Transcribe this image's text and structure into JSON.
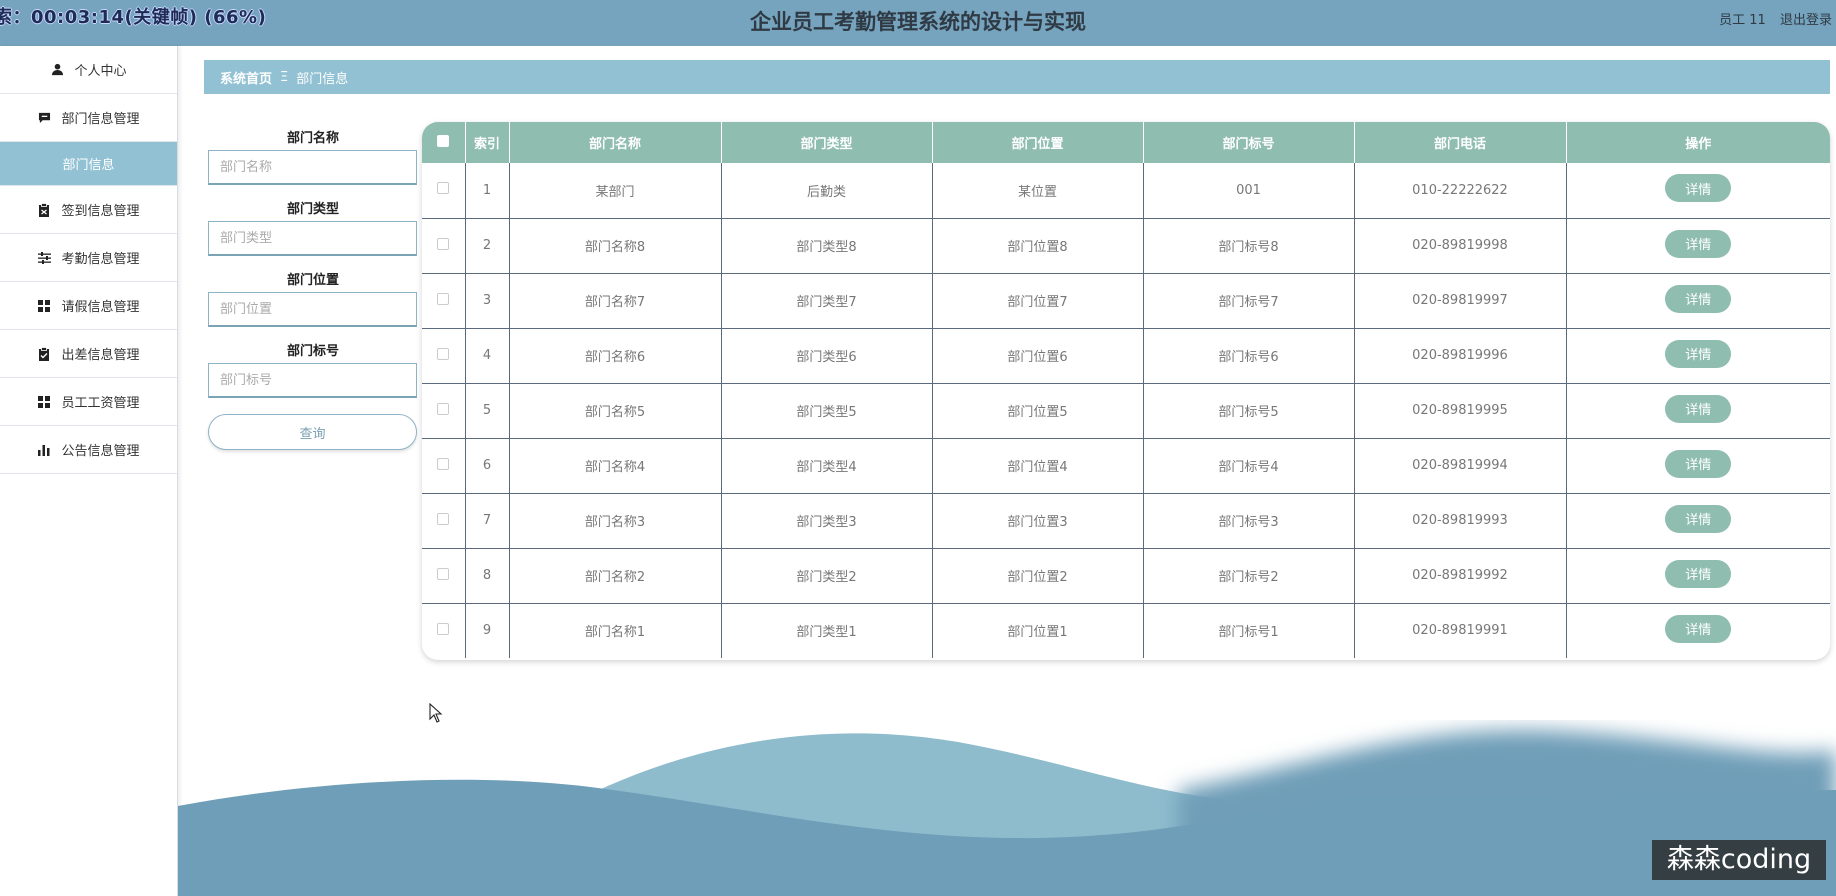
{
  "overlay": {
    "text": "索：00:03:14(关键帧) (66%)"
  },
  "header": {
    "title": "企业员工考勤管理系统的设计与实现",
    "user": "员工 11",
    "logout": "退出登录"
  },
  "sidebar": {
    "items": [
      {
        "label": "个人中心",
        "icon": "user-icon"
      },
      {
        "label": "部门信息管理",
        "icon": "message-icon"
      },
      {
        "label": "部门信息",
        "icon": "",
        "active": true
      },
      {
        "label": "签到信息管理",
        "icon": "clipboard-icon"
      },
      {
        "label": "考勤信息管理",
        "icon": "sliders-icon"
      },
      {
        "label": "请假信息管理",
        "icon": "grid-icon"
      },
      {
        "label": "出差信息管理",
        "icon": "clipboard-check-icon"
      },
      {
        "label": "员工工资管理",
        "icon": "grid-icon"
      },
      {
        "label": "公告信息管理",
        "icon": "bar-chart-icon"
      }
    ]
  },
  "breadcrumb": {
    "home": "系统首页",
    "separator": "Ξ",
    "current": "部门信息"
  },
  "search": {
    "fields": [
      {
        "label": "部门名称",
        "placeholder": "部门名称"
      },
      {
        "label": "部门类型",
        "placeholder": "部门类型"
      },
      {
        "label": "部门位置",
        "placeholder": "部门位置"
      },
      {
        "label": "部门标号",
        "placeholder": "部门标号"
      }
    ],
    "button": "查询"
  },
  "table": {
    "columns": [
      "索引",
      "部门名称",
      "部门类型",
      "部门位置",
      "部门标号",
      "部门电话",
      "操作"
    ],
    "action_label": "详情",
    "rows": [
      [
        "1",
        "某部门",
        "后勤类",
        "某位置",
        "001",
        "010-22222622"
      ],
      [
        "2",
        "部门名称8",
        "部门类型8",
        "部门位置8",
        "部门标号8",
        "020-89819998"
      ],
      [
        "3",
        "部门名称7",
        "部门类型7",
        "部门位置7",
        "部门标号7",
        "020-89819997"
      ],
      [
        "4",
        "部门名称6",
        "部门类型6",
        "部门位置6",
        "部门标号6",
        "020-89819996"
      ],
      [
        "5",
        "部门名称5",
        "部门类型5",
        "部门位置5",
        "部门标号5",
        "020-89819995"
      ],
      [
        "6",
        "部门名称4",
        "部门类型4",
        "部门位置4",
        "部门标号4",
        "020-89819994"
      ],
      [
        "7",
        "部门名称3",
        "部门类型3",
        "部门位置3",
        "部门标号3",
        "020-89819993"
      ],
      [
        "8",
        "部门名称2",
        "部门类型2",
        "部门位置2",
        "部门标号2",
        "020-89819992"
      ],
      [
        "9",
        "部门名称1",
        "部门类型1",
        "部门位置1",
        "部门标号1",
        "020-89819991"
      ]
    ]
  },
  "watermark": {
    "text": "森森coding"
  },
  "colors": {
    "header_bg": "#76a4be",
    "accent": "#91c1d2",
    "table_header": "#8fbdb0",
    "wave_dark": "#6f9eb8",
    "wave_light": "#8fbccd"
  }
}
